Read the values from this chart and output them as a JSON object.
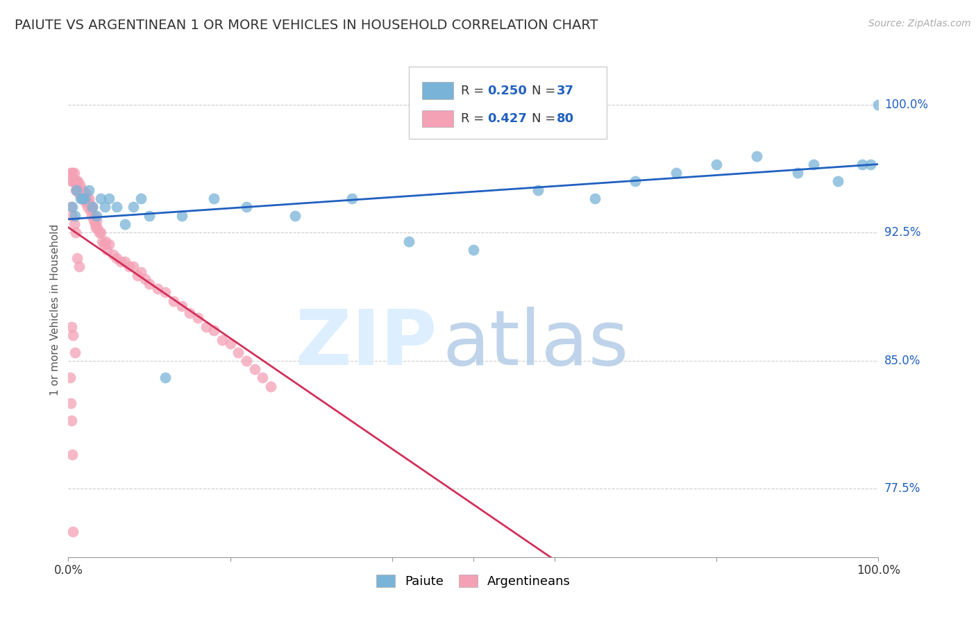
{
  "title": "PAIUTE VS ARGENTINEAN 1 OR MORE VEHICLES IN HOUSEHOLD CORRELATION CHART",
  "source": "Source: ZipAtlas.com",
  "ylabel": "1 or more Vehicles in Household",
  "ytick_labels": [
    "77.5%",
    "85.0%",
    "92.5%",
    "100.0%"
  ],
  "ytick_values": [
    0.775,
    0.85,
    0.925,
    1.0
  ],
  "xmin": 0.0,
  "xmax": 1.0,
  "ymin": 0.735,
  "ymax": 1.025,
  "legend_r1": "R = 0.250",
  "legend_n1": "N = 37",
  "legend_r2": "R = 0.427",
  "legend_n2": "N = 80",
  "blue_color": "#7ab3d8",
  "pink_color": "#f4a0b5",
  "trend_blue": "#2060c0",
  "trend_pink": "#d0305a",
  "paiute_x": [
    0.005,
    0.008,
    0.01,
    0.015,
    0.018,
    0.02,
    0.025,
    0.03,
    0.035,
    0.04,
    0.045,
    0.05,
    0.06,
    0.07,
    0.08,
    0.09,
    0.1,
    0.12,
    0.14,
    0.18,
    0.22,
    0.28,
    0.35,
    0.42,
    0.5,
    0.58,
    0.65,
    0.7,
    0.75,
    0.8,
    0.85,
    0.9,
    0.92,
    0.95,
    0.98,
    0.99,
    1.0
  ],
  "paiute_y": [
    0.94,
    0.935,
    0.95,
    0.945,
    0.945,
    0.945,
    0.95,
    0.94,
    0.935,
    0.945,
    0.94,
    0.945,
    0.94,
    0.93,
    0.94,
    0.945,
    0.935,
    0.84,
    0.935,
    0.945,
    0.94,
    0.935,
    0.945,
    0.92,
    0.915,
    0.95,
    0.945,
    0.955,
    0.96,
    0.965,
    0.97,
    0.96,
    0.965,
    0.955,
    0.965,
    0.965,
    1.0
  ],
  "arg_x": [
    0.003,
    0.004,
    0.005,
    0.006,
    0.007,
    0.008,
    0.009,
    0.01,
    0.011,
    0.012,
    0.013,
    0.014,
    0.015,
    0.016,
    0.017,
    0.018,
    0.019,
    0.02,
    0.021,
    0.022,
    0.023,
    0.024,
    0.025,
    0.026,
    0.027,
    0.028,
    0.029,
    0.03,
    0.031,
    0.032,
    0.033,
    0.034,
    0.035,
    0.036,
    0.038,
    0.04,
    0.042,
    0.044,
    0.046,
    0.048,
    0.05,
    0.055,
    0.06,
    0.065,
    0.07,
    0.075,
    0.08,
    0.085,
    0.09,
    0.095,
    0.1,
    0.11,
    0.12,
    0.13,
    0.14,
    0.15,
    0.16,
    0.17,
    0.18,
    0.19,
    0.2,
    0.21,
    0.22,
    0.23,
    0.24,
    0.25,
    0.003,
    0.005,
    0.007,
    0.009,
    0.011,
    0.013,
    0.004,
    0.006,
    0.008,
    0.002,
    0.003,
    0.004,
    0.005,
    0.006
  ],
  "arg_y": [
    0.96,
    0.955,
    0.96,
    0.955,
    0.96,
    0.955,
    0.95,
    0.955,
    0.95,
    0.955,
    0.948,
    0.953,
    0.95,
    0.948,
    0.945,
    0.95,
    0.945,
    0.948,
    0.943,
    0.948,
    0.945,
    0.94,
    0.945,
    0.942,
    0.938,
    0.94,
    0.935,
    0.94,
    0.932,
    0.935,
    0.93,
    0.928,
    0.932,
    0.928,
    0.925,
    0.925,
    0.92,
    0.918,
    0.92,
    0.915,
    0.918,
    0.912,
    0.91,
    0.908,
    0.908,
    0.905,
    0.905,
    0.9,
    0.902,
    0.898,
    0.895,
    0.892,
    0.89,
    0.885,
    0.882,
    0.878,
    0.875,
    0.87,
    0.868,
    0.862,
    0.86,
    0.855,
    0.85,
    0.845,
    0.84,
    0.835,
    0.94,
    0.935,
    0.93,
    0.925,
    0.91,
    0.905,
    0.87,
    0.865,
    0.855,
    0.84,
    0.825,
    0.815,
    0.795,
    0.75
  ]
}
